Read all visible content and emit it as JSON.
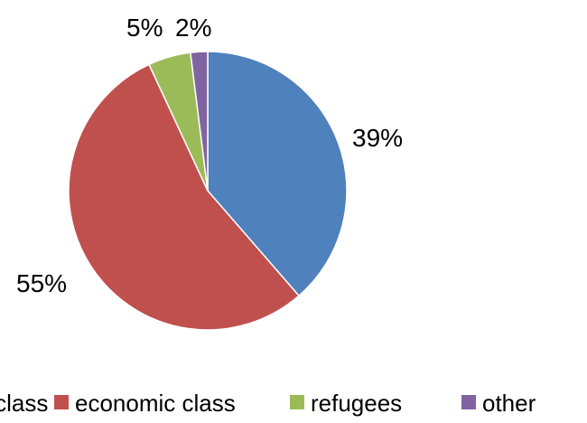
{
  "chart_data": {
    "type": "pie",
    "title": "",
    "slices": [
      {
        "label": "family class",
        "value": 39,
        "display": "39%",
        "color": "#4F81BD"
      },
      {
        "label": "economic class",
        "value": 55,
        "display": "55%",
        "color": "#C0504D"
      },
      {
        "label": "refugees",
        "value": 5,
        "display": "5%",
        "color": "#9BBB59"
      },
      {
        "label": "other",
        "value": 2,
        "display": "2%",
        "color": "#8064A2"
      }
    ],
    "legend_position": "bottom"
  }
}
